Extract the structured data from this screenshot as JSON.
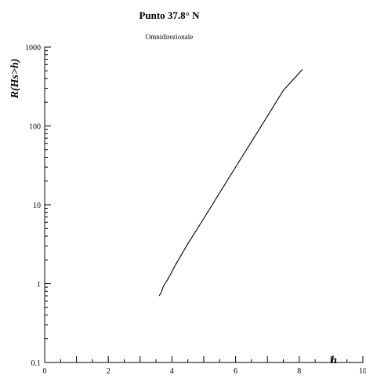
{
  "chart_data": {
    "type": "line",
    "title": "Punto 37.8° N",
    "subtitle": "Omnidirezionale",
    "xlabel": "h",
    "ylabel": "R(Hs>h)",
    "xlim": [
      0,
      10
    ],
    "ylim": [
      0.1,
      1000
    ],
    "yscale": "log",
    "grid": false,
    "x_ticks": [
      "0",
      "2",
      "4",
      "6",
      "8",
      "10"
    ],
    "y_ticks": [
      "0.1",
      "1",
      "10",
      "100",
      "1000"
    ],
    "series": [
      {
        "color": "#000000",
        "points": [
          [
            3.6,
            0.7
          ],
          [
            3.68,
            0.8
          ],
          [
            3.72,
            0.9
          ],
          [
            3.78,
            1.0
          ],
          [
            3.85,
            1.1
          ],
          [
            3.95,
            1.3
          ],
          [
            4.1,
            1.7
          ],
          [
            4.5,
            3.2
          ],
          [
            5.0,
            6.7
          ],
          [
            5.5,
            14.2
          ],
          [
            6.0,
            30
          ],
          [
            6.5,
            63
          ],
          [
            7.0,
            133
          ],
          [
            7.5,
            282
          ],
          [
            8.1,
            520
          ]
        ]
      }
    ]
  }
}
